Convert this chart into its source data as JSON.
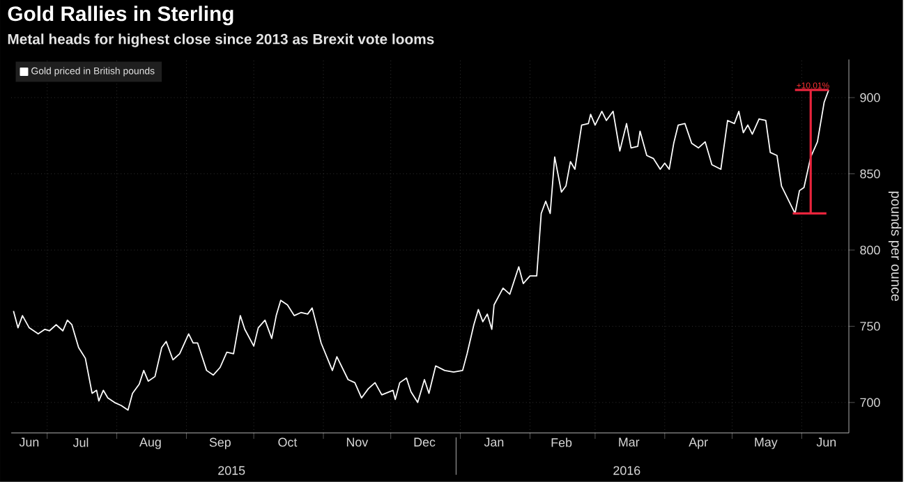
{
  "chart_data": {
    "type": "line",
    "title": "Gold Rallies in Sterling",
    "subtitle": "Metal heads for highest close since 2013 as Brexit vote looms",
    "ylabel": "pounds per ounce",
    "xlim": [
      "2015-06-15",
      "2016-06-22"
    ],
    "ylim": [
      680,
      925
    ],
    "yticks": [
      700,
      750,
      800,
      850,
      900
    ],
    "xticks": [
      {
        "value": "2015-06-23",
        "label": "Jun"
      },
      {
        "value": "2015-07-01",
        "label": null
      },
      {
        "value": "2015-07-16",
        "label": "Jul"
      },
      {
        "value": "2015-08-01",
        "label": null
      },
      {
        "value": "2015-08-16",
        "label": "Aug"
      },
      {
        "value": "2015-09-01",
        "label": null
      },
      {
        "value": "2015-09-16",
        "label": "Sep"
      },
      {
        "value": "2015-10-01",
        "label": null
      },
      {
        "value": "2015-10-16",
        "label": "Oct"
      },
      {
        "value": "2015-11-01",
        "label": null
      },
      {
        "value": "2015-11-16",
        "label": "Nov"
      },
      {
        "value": "2015-12-01",
        "label": null
      },
      {
        "value": "2015-12-16",
        "label": "Dec"
      },
      {
        "value": "2016-01-01",
        "label": null
      },
      {
        "value": "2016-01-16",
        "label": "Jan"
      },
      {
        "value": "2016-02-01",
        "label": null
      },
      {
        "value": "2016-02-15",
        "label": "Feb"
      },
      {
        "value": "2016-03-01",
        "label": null
      },
      {
        "value": "2016-03-16",
        "label": "Mar"
      },
      {
        "value": "2016-04-01",
        "label": null
      },
      {
        "value": "2016-04-16",
        "label": "Apr"
      },
      {
        "value": "2016-05-01",
        "label": null
      },
      {
        "value": "2016-05-16",
        "label": "May"
      },
      {
        "value": "2016-06-01",
        "label": null
      },
      {
        "value": "2016-06-12",
        "label": "Jun"
      }
    ],
    "x2lim": [
      "2015-06-15",
      "2016-06-22"
    ],
    "x2ticks": [
      {
        "value": "2015-09-23",
        "label": "2015"
      },
      {
        "value": "2016-01-01",
        "label": null
      },
      {
        "value": "2016-03-17",
        "label": "2016"
      }
    ],
    "grid": true,
    "legend": "top left",
    "marker": "none",
    "line_style": "solid",
    "series": [
      {
        "name": "Gold priced in British pounds",
        "color": "#ffffff",
        "x": [
          "2015-06-16",
          "2015-06-18",
          "2015-06-20",
          "2015-06-23",
          "2015-06-27",
          "2015-06-30",
          "2015-07-02",
          "2015-07-05",
          "2015-07-08",
          "2015-07-10",
          "2015-07-12",
          "2015-07-15",
          "2015-07-18",
          "2015-07-21",
          "2015-07-23",
          "2015-07-24",
          "2015-07-26",
          "2015-07-28",
          "2015-07-31",
          "2015-08-03",
          "2015-08-06",
          "2015-08-08",
          "2015-08-11",
          "2015-08-13",
          "2015-08-15",
          "2015-08-18",
          "2015-08-21",
          "2015-08-23",
          "2015-08-26",
          "2015-08-29",
          "2015-09-02",
          "2015-09-04",
          "2015-09-06",
          "2015-09-10",
          "2015-09-13",
          "2015-09-16",
          "2015-09-19",
          "2015-09-22",
          "2015-09-25",
          "2015-09-27",
          "2015-10-01",
          "2015-10-03",
          "2015-10-06",
          "2015-10-09",
          "2015-10-11",
          "2015-10-13",
          "2015-10-16",
          "2015-10-19",
          "2015-10-22",
          "2015-10-25",
          "2015-10-27",
          "2015-10-31",
          "2015-11-05",
          "2015-11-07",
          "2015-11-12",
          "2015-11-15",
          "2015-11-18",
          "2015-11-21",
          "2015-11-24",
          "2015-11-27",
          "2015-12-02",
          "2015-12-03",
          "2015-12-05",
          "2015-12-08",
          "2015-12-10",
          "2015-12-13",
          "2015-12-16",
          "2015-12-18",
          "2015-12-21",
          "2015-12-25",
          "2015-12-29",
          "2016-01-02",
          "2016-01-04",
          "2016-01-07",
          "2016-01-09",
          "2016-01-11",
          "2016-01-13",
          "2016-01-15",
          "2016-01-16",
          "2016-01-20",
          "2016-01-23",
          "2016-01-27",
          "2016-01-29",
          "2016-02-01",
          "2016-02-04",
          "2016-02-06",
          "2016-02-08",
          "2016-02-10",
          "2016-02-12",
          "2016-02-15",
          "2016-02-17",
          "2016-02-19",
          "2016-02-21",
          "2016-02-24",
          "2016-02-27",
          "2016-02-28",
          "2016-03-01",
          "2016-03-04",
          "2016-03-06",
          "2016-03-09",
          "2016-03-12",
          "2016-03-15",
          "2016-03-17",
          "2016-03-20",
          "2016-03-21",
          "2016-03-24",
          "2016-03-27",
          "2016-03-30",
          "2016-04-01",
          "2016-04-03",
          "2016-04-05",
          "2016-04-07",
          "2016-04-10",
          "2016-04-13",
          "2016-04-16",
          "2016-04-19",
          "2016-04-22",
          "2016-04-26",
          "2016-04-29",
          "2016-05-02",
          "2016-05-04",
          "2016-05-06",
          "2016-05-08",
          "2016-05-10",
          "2016-05-13",
          "2016-05-16",
          "2016-05-18",
          "2016-05-21",
          "2016-05-23",
          "2016-05-26",
          "2016-05-29",
          "2016-05-31",
          "2016-06-02",
          "2016-06-05",
          "2016-06-08",
          "2016-06-11",
          "2016-06-13"
        ],
        "values": [
          760,
          749,
          757,
          749,
          745,
          748,
          747,
          751,
          747,
          754,
          751,
          736,
          729,
          706,
          708,
          701,
          708,
          703,
          700,
          698,
          695,
          706,
          712,
          721,
          714,
          717,
          736,
          740,
          728,
          732,
          745,
          739,
          739,
          721,
          718,
          723,
          733,
          732,
          757,
          748,
          737,
          749,
          754,
          742,
          757,
          767,
          764,
          757,
          759,
          758,
          762,
          739,
          721,
          730,
          715,
          713,
          703,
          709,
          713,
          705,
          708,
          702,
          713,
          716,
          707,
          700,
          715,
          706,
          724,
          721,
          720,
          721,
          732,
          751,
          761,
          753,
          758,
          748,
          764,
          775,
          771,
          789,
          778,
          783,
          783,
          824,
          832,
          824,
          861,
          838,
          842,
          858,
          853,
          882,
          883,
          889,
          882,
          891,
          885,
          891,
          865,
          883,
          867,
          868,
          878,
          862,
          860,
          853,
          857,
          853,
          870,
          882,
          883,
          870,
          867,
          871,
          856,
          853,
          885,
          883,
          891,
          877,
          882,
          876,
          886,
          885,
          864,
          862,
          842,
          833,
          824,
          839,
          841,
          861,
          871,
          897,
          905
        ]
      },
      {
        "color": "#e8243c",
        "x": [
          "2016-05-29",
          "2016-06-13"
        ],
        "values": [
          905,
          905
        ]
      },
      {
        "color": "#e8243c",
        "x": [
          "2016-05-28",
          "2016-06-12"
        ],
        "values": [
          824,
          824
        ]
      },
      {
        "color": "#e8243c",
        "x": [
          "2016-06-05",
          "2016-06-05"
        ],
        "values": [
          824,
          905
        ]
      }
    ],
    "annotations": [
      {
        "text": "+10.01%",
        "x": "2016-06-06",
        "y": 905
      }
    ]
  }
}
